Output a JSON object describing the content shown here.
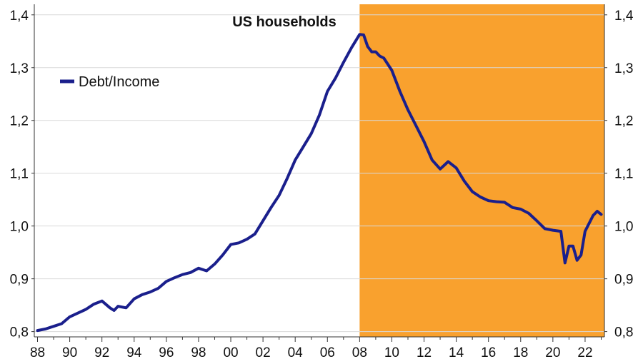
{
  "chart_data": {
    "type": "line",
    "title": "US households",
    "xlabel": "",
    "ylabel": "",
    "x_tick_labels": [
      "88",
      "90",
      "92",
      "94",
      "96",
      "98",
      "00",
      "02",
      "04",
      "06",
      "08",
      "10",
      "12",
      "14",
      "16",
      "18",
      "20",
      "22"
    ],
    "x_tick_years": [
      1988,
      1990,
      1992,
      1994,
      1996,
      1998,
      2000,
      2002,
      2004,
      2006,
      2008,
      2010,
      2012,
      2014,
      2016,
      2018,
      2020,
      2022
    ],
    "y_tick_labels": [
      "0,8",
      "0,9",
      "1,0",
      "1,1",
      "1,2",
      "1,3",
      "1,4"
    ],
    "y_tick_values": [
      0.8,
      0.9,
      1.0,
      1.1,
      1.2,
      1.3,
      1.4
    ],
    "xlim": [
      1987.8,
      2023.2
    ],
    "ylim": [
      0.79,
      1.42
    ],
    "grid": "horizontal",
    "legend": {
      "position": "top-left"
    },
    "shaded_region": {
      "x_start": 2008.0,
      "x_end": 2023.2,
      "color": "#F9A12E"
    },
    "series": [
      {
        "name": "Debt/Income",
        "color": "#1A1F8C",
        "x": [
          1988.0,
          1988.5,
          1989.0,
          1989.5,
          1990.0,
          1990.5,
          1991.0,
          1991.5,
          1992.0,
          1992.5,
          1992.75,
          1993.0,
          1993.5,
          1994.0,
          1994.5,
          1995.0,
          1995.5,
          1996.0,
          1996.5,
          1997.0,
          1997.5,
          1998.0,
          1998.5,
          1999.0,
          1999.5,
          2000.0,
          2000.5,
          2001.0,
          2001.5,
          2002.0,
          2002.5,
          2003.0,
          2003.5,
          2004.0,
          2004.5,
          2005.0,
          2005.5,
          2006.0,
          2006.5,
          2007.0,
          2007.5,
          2008.0,
          2008.25,
          2008.5,
          2008.75,
          2009.0,
          2009.25,
          2009.5,
          2010.0,
          2010.5,
          2011.0,
          2011.5,
          2012.0,
          2012.5,
          2013.0,
          2013.25,
          2013.5,
          2014.0,
          2014.5,
          2015.0,
          2015.5,
          2016.0,
          2016.5,
          2017.0,
          2017.5,
          2018.0,
          2018.5,
          2019.0,
          2019.5,
          2020.0,
          2020.5,
          2020.75,
          2021.0,
          2021.25,
          2021.5,
          2021.75,
          2022.0,
          2022.5,
          2022.75,
          2023.0
        ],
        "values": [
          0.802,
          0.805,
          0.81,
          0.815,
          0.828,
          0.835,
          0.842,
          0.852,
          0.858,
          0.845,
          0.84,
          0.848,
          0.845,
          0.862,
          0.87,
          0.875,
          0.882,
          0.895,
          0.902,
          0.908,
          0.912,
          0.92,
          0.915,
          0.928,
          0.945,
          0.965,
          0.968,
          0.975,
          0.985,
          1.01,
          1.035,
          1.058,
          1.09,
          1.125,
          1.15,
          1.175,
          1.21,
          1.255,
          1.28,
          1.31,
          1.338,
          1.363,
          1.362,
          1.34,
          1.33,
          1.33,
          1.322,
          1.318,
          1.295,
          1.255,
          1.22,
          1.19,
          1.16,
          1.125,
          1.108,
          1.115,
          1.122,
          1.11,
          1.085,
          1.065,
          1.055,
          1.048,
          1.046,
          1.045,
          1.035,
          1.032,
          1.024,
          1.01,
          0.995,
          0.992,
          0.99,
          0.93,
          0.962,
          0.962,
          0.935,
          0.945,
          0.99,
          1.02,
          1.028,
          1.022
        ]
      }
    ]
  }
}
